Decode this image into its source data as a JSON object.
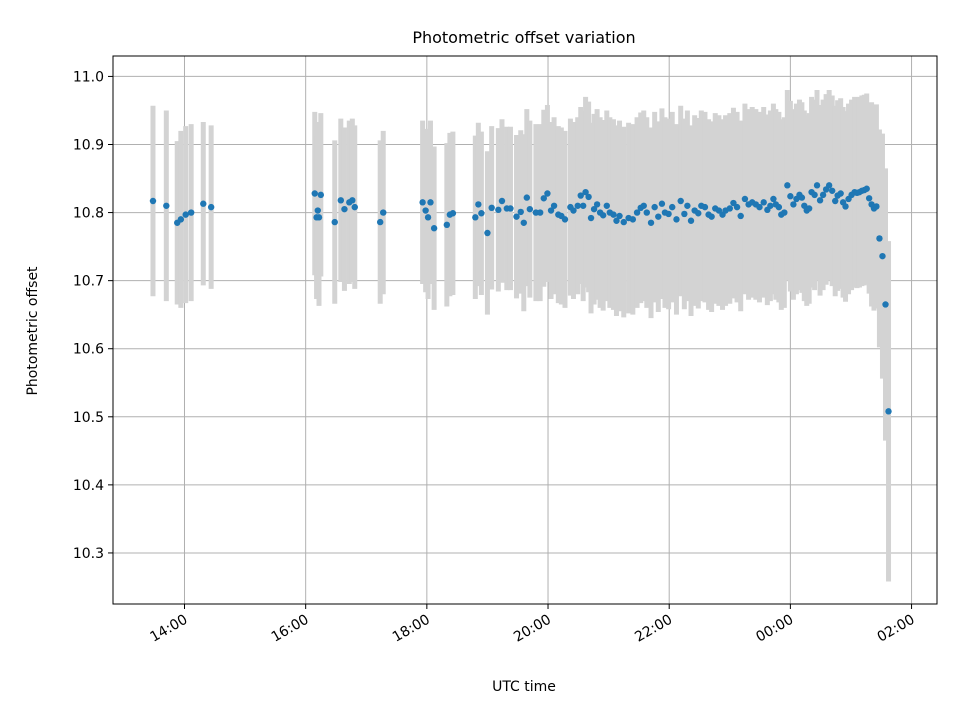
{
  "chart_data": {
    "type": "scatter",
    "title": "Photometric offset variation",
    "xlabel": "UTC time",
    "ylabel": "Photometric offset",
    "x_unit": "hours after 13:00 UTC; values above 24 fall after midnight",
    "xlim": [
      -0.18,
      13.42
    ],
    "ylim": [
      10.225,
      11.03
    ],
    "x_ticks": [
      {
        "value": 1,
        "label": "14:00"
      },
      {
        "value": 3,
        "label": "16:00"
      },
      {
        "value": 5,
        "label": "18:00"
      },
      {
        "value": 7,
        "label": "20:00"
      },
      {
        "value": 9,
        "label": "22:00"
      },
      {
        "value": 11,
        "label": "00:00"
      },
      {
        "value": 13,
        "label": "02:00"
      }
    ],
    "y_ticks": [
      {
        "value": 10.3,
        "label": "10.3"
      },
      {
        "value": 10.4,
        "label": "10.4"
      },
      {
        "value": 10.5,
        "label": "10.5"
      },
      {
        "value": 10.6,
        "label": "10.6"
      },
      {
        "value": 10.7,
        "label": "10.7"
      },
      {
        "value": 10.8,
        "label": "10.8"
      },
      {
        "value": 10.9,
        "label": "10.9"
      },
      {
        "value": 11.0,
        "label": "11.0"
      }
    ],
    "grid": true,
    "colors": {
      "point": "#1f77b4",
      "errorbar": "#d3d3d3",
      "grid": "#b0b0b0",
      "axes": "#000000"
    },
    "series": [
      {
        "x": [
          0.48,
          0.7,
          0.88,
          0.94,
          1.02,
          1.11,
          1.31,
          1.44,
          3.15,
          3.18,
          3.2,
          3.22,
          3.25,
          3.48,
          3.58,
          3.64,
          3.72,
          3.77,
          3.81,
          4.23,
          4.28,
          4.93,
          4.98,
          5.02,
          5.06,
          5.12,
          5.33,
          5.38,
          5.43,
          5.8,
          5.85,
          5.9,
          6.0,
          6.07,
          6.18,
          6.24,
          6.32,
          6.38,
          6.48,
          6.55,
          6.6,
          6.65,
          6.7,
          6.8,
          6.87,
          6.93,
          6.99,
          7.05,
          7.1,
          7.17,
          7.22,
          7.28,
          7.37,
          7.42,
          7.49,
          7.54,
          7.58,
          7.62,
          7.67,
          7.71,
          7.76,
          7.81,
          7.86,
          7.91,
          7.97,
          8.02,
          8.08,
          8.13,
          8.18,
          8.25,
          8.33,
          8.4,
          8.47,
          8.53,
          8.58,
          8.63,
          8.7,
          8.76,
          8.82,
          8.88,
          8.93,
          8.99,
          9.05,
          9.12,
          9.19,
          9.25,
          9.3,
          9.36,
          9.42,
          9.48,
          9.53,
          9.59,
          9.65,
          9.7,
          9.76,
          9.82,
          9.88,
          9.93,
          10.0,
          10.06,
          10.12,
          10.18,
          10.25,
          10.31,
          10.37,
          10.43,
          10.49,
          10.56,
          10.62,
          10.67,
          10.72,
          10.76,
          10.81,
          10.85,
          10.9,
          10.95,
          11.0,
          11.05,
          11.1,
          11.15,
          11.19,
          11.23,
          11.27,
          11.31,
          11.35,
          11.4,
          11.44,
          11.49,
          11.54,
          11.59,
          11.64,
          11.69,
          11.74,
          11.78,
          11.83,
          11.87,
          11.91,
          11.96,
          12.01,
          12.06,
          12.1,
          12.14,
          12.18,
          12.22,
          12.26,
          12.3,
          12.34,
          12.38,
          12.42,
          12.47,
          12.52,
          12.57,
          12.62
        ],
        "y": [
          10.817,
          10.81,
          10.785,
          10.79,
          10.797,
          10.8,
          10.813,
          10.808,
          10.828,
          10.793,
          10.803,
          10.793,
          10.826,
          10.786,
          10.818,
          10.805,
          10.815,
          10.818,
          10.808,
          10.786,
          10.8,
          10.815,
          10.803,
          10.793,
          10.815,
          10.777,
          10.782,
          10.797,
          10.799,
          10.793,
          10.812,
          10.799,
          10.77,
          10.807,
          10.804,
          10.817,
          10.806,
          10.806,
          10.794,
          10.801,
          10.785,
          10.822,
          10.805,
          10.8,
          10.8,
          10.821,
          10.828,
          10.803,
          10.81,
          10.797,
          10.795,
          10.79,
          10.808,
          10.803,
          10.81,
          10.825,
          10.81,
          10.83,
          10.823,
          10.792,
          10.805,
          10.812,
          10.8,
          10.796,
          10.81,
          10.8,
          10.797,
          10.788,
          10.795,
          10.786,
          10.792,
          10.79,
          10.8,
          10.807,
          10.81,
          10.8,
          10.785,
          10.808,
          10.794,
          10.813,
          10.8,
          10.798,
          10.808,
          10.79,
          10.817,
          10.798,
          10.81,
          10.788,
          10.803,
          10.799,
          10.81,
          10.808,
          10.797,
          10.794,
          10.806,
          10.803,
          10.797,
          10.803,
          10.806,
          10.814,
          10.808,
          10.795,
          10.82,
          10.812,
          10.815,
          10.812,
          10.808,
          10.815,
          10.804,
          10.81,
          10.82,
          10.812,
          10.808,
          10.797,
          10.8,
          10.84,
          10.824,
          10.812,
          10.82,
          10.826,
          10.822,
          10.81,
          10.803,
          10.806,
          10.83,
          10.826,
          10.84,
          10.818,
          10.826,
          10.834,
          10.84,
          10.832,
          10.817,
          10.825,
          10.828,
          10.815,
          10.809,
          10.82,
          10.826,
          10.83,
          10.829,
          10.83,
          10.832,
          10.833,
          10.835,
          10.821,
          10.812,
          10.806,
          10.809,
          10.762,
          10.736,
          10.665,
          10.508
        ],
        "err": [
          0.14,
          0.14,
          0.12,
          0.13,
          0.13,
          0.13,
          0.12,
          0.12,
          0.12,
          0.12,
          0.13,
          0.13,
          0.12,
          0.12,
          0.12,
          0.12,
          0.12,
          0.12,
          0.12,
          0.12,
          0.12,
          0.12,
          0.12,
          0.12,
          0.12,
          0.12,
          0.12,
          0.12,
          0.12,
          0.12,
          0.12,
          0.12,
          0.12,
          0.12,
          0.12,
          0.12,
          0.12,
          0.12,
          0.12,
          0.12,
          0.13,
          0.13,
          0.13,
          0.13,
          0.13,
          0.13,
          0.13,
          0.13,
          0.13,
          0.13,
          0.13,
          0.13,
          0.13,
          0.13,
          0.13,
          0.13,
          0.14,
          0.14,
          0.14,
          0.14,
          0.14,
          0.14,
          0.14,
          0.14,
          0.14,
          0.14,
          0.14,
          0.14,
          0.14,
          0.14,
          0.14,
          0.14,
          0.14,
          0.14,
          0.14,
          0.14,
          0.14,
          0.14,
          0.14,
          0.14,
          0.14,
          0.14,
          0.14,
          0.14,
          0.14,
          0.14,
          0.14,
          0.14,
          0.14,
          0.14,
          0.14,
          0.14,
          0.14,
          0.14,
          0.14,
          0.14,
          0.14,
          0.14,
          0.14,
          0.14,
          0.14,
          0.14,
          0.14,
          0.14,
          0.14,
          0.14,
          0.14,
          0.14,
          0.14,
          0.14,
          0.14,
          0.14,
          0.14,
          0.14,
          0.14,
          0.14,
          0.14,
          0.14,
          0.14,
          0.14,
          0.14,
          0.14,
          0.14,
          0.14,
          0.14,
          0.14,
          0.14,
          0.14,
          0.14,
          0.14,
          0.14,
          0.14,
          0.14,
          0.14,
          0.14,
          0.14,
          0.14,
          0.14,
          0.14,
          0.14,
          0.14,
          0.14,
          0.14,
          0.14,
          0.14,
          0.14,
          0.15,
          0.15,
          0.15,
          0.16,
          0.18,
          0.2,
          0.25
        ]
      }
    ]
  }
}
